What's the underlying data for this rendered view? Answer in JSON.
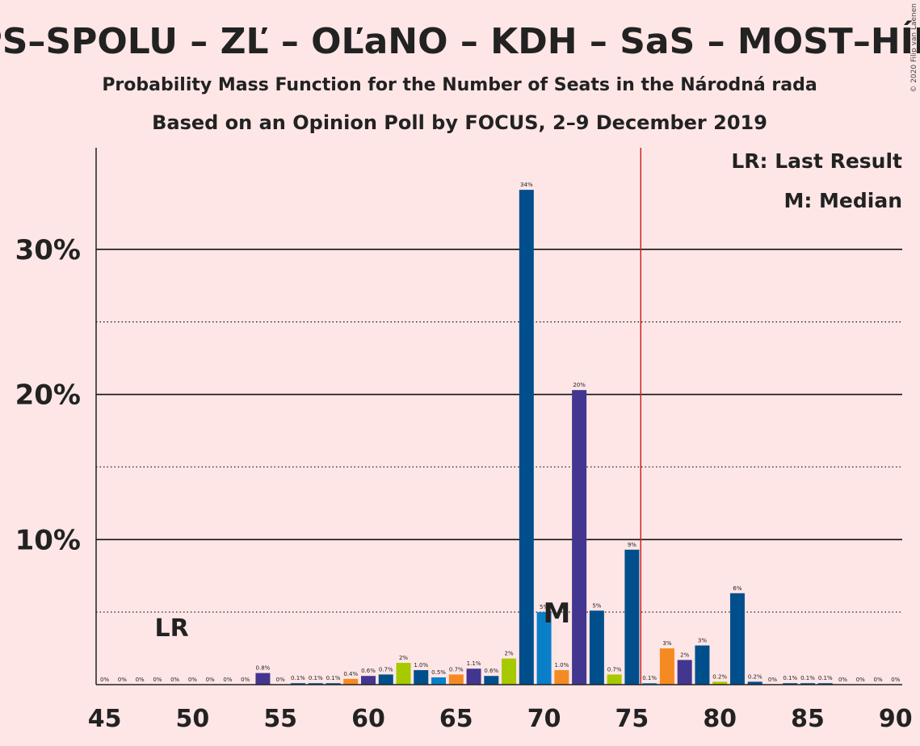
{
  "chart_data": {
    "type": "bar",
    "title": "PS–SPOLU – ZĽ – OĽaNO – KDH – SaS – MOST–HÍD",
    "subtitle1": "Probability Mass Function for the Number of Seats in the Národná rada",
    "subtitle2": "Based on an Opinion Poll by FOCUS, 2–9 December 2019",
    "copyright": "© 2020 Filip van Laenen",
    "legend": {
      "lr": "LR: Last Result",
      "median": "M: Median",
      "placement": "top-right"
    },
    "markers": {
      "lr_label": "LR",
      "lr_seat": 49,
      "median_label": "M",
      "median_seat": 71,
      "majority_line": 75.5
    },
    "xlim": [
      45,
      90
    ],
    "ylim": [
      0,
      37
    ],
    "x_ticks": [
      45,
      50,
      55,
      60,
      65,
      70,
      75,
      80,
      85,
      90
    ],
    "y_ticks_major": [
      10,
      20,
      30
    ],
    "y_ticks_minor": [
      5,
      15,
      25
    ],
    "y_tick_labels": [
      "10%",
      "20%",
      "30%"
    ],
    "colors": {
      "blue": "#004F8C",
      "lightblue": "#0A7FC9",
      "purple": "#433690",
      "orange": "#F68A22",
      "yellowgreen": "#A7C900",
      "majority": "#CC2222",
      "background": "#FFE6E6"
    },
    "bars": [
      {
        "x": 45,
        "value": 0,
        "label": "0%",
        "color": "#004F8C"
      },
      {
        "x": 46,
        "value": 0,
        "label": "0%",
        "color": "#004F8C"
      },
      {
        "x": 47,
        "value": 0,
        "label": "0%",
        "color": "#004F8C"
      },
      {
        "x": 48,
        "value": 0,
        "label": "0%",
        "color": "#004F8C"
      },
      {
        "x": 49,
        "value": 0,
        "label": "0%",
        "color": "#004F8C"
      },
      {
        "x": 50,
        "value": 0,
        "label": "0%",
        "color": "#004F8C"
      },
      {
        "x": 51,
        "value": 0,
        "label": "0%",
        "color": "#004F8C"
      },
      {
        "x": 52,
        "value": 0,
        "label": "0%",
        "color": "#004F8C"
      },
      {
        "x": 53,
        "value": 0,
        "label": "0%",
        "color": "#004F8C"
      },
      {
        "x": 54,
        "value": 0.8,
        "label": "0.8%",
        "color": "#433690"
      },
      {
        "x": 55,
        "value": 0,
        "label": "0%",
        "color": "#004F8C"
      },
      {
        "x": 56,
        "value": 0.1,
        "label": "0.1%",
        "color": "#004F8C"
      },
      {
        "x": 57,
        "value": 0.1,
        "label": "0.1%",
        "color": "#004F8C"
      },
      {
        "x": 58,
        "value": 0.1,
        "label": "0.1%",
        "color": "#004F8C"
      },
      {
        "x": 59,
        "value": 0.4,
        "label": "0.4%",
        "color": "#F68A22"
      },
      {
        "x": 60,
        "value": 0.6,
        "label": "0.6%",
        "color": "#433690"
      },
      {
        "x": 61,
        "value": 0.7,
        "label": "0.7%",
        "color": "#004F8C"
      },
      {
        "x": 62,
        "value": 1.5,
        "label": "2%",
        "color": "#A7C900"
      },
      {
        "x": 63,
        "value": 1.0,
        "label": "1.0%",
        "color": "#004F8C"
      },
      {
        "x": 64,
        "value": 0.5,
        "label": "0.5%",
        "color": "#0A7FC9"
      },
      {
        "x": 65,
        "value": 0.7,
        "label": "0.7%",
        "color": "#F68A22"
      },
      {
        "x": 66,
        "value": 1.1,
        "label": "1.1%",
        "color": "#433690"
      },
      {
        "x": 67,
        "value": 0.6,
        "label": "0.6%",
        "color": "#004F8C"
      },
      {
        "x": 68,
        "value": 1.8,
        "label": "2%",
        "color": "#A7C900"
      },
      {
        "x": 69,
        "value": 34.1,
        "label": "34%",
        "color": "#004F8C"
      },
      {
        "x": 70,
        "value": 5.0,
        "label": "5%",
        "color": "#0A7FC9"
      },
      {
        "x": 71,
        "value": 1.0,
        "label": "1.0%",
        "color": "#F68A22"
      },
      {
        "x": 72,
        "value": 20.3,
        "label": "20%",
        "color": "#433690"
      },
      {
        "x": 73,
        "value": 5.1,
        "label": "5%",
        "color": "#004F8C"
      },
      {
        "x": 74,
        "value": 0.7,
        "label": "0.7%",
        "color": "#A7C900"
      },
      {
        "x": 75,
        "value": 9.3,
        "label": "9%",
        "color": "#004F8C"
      },
      {
        "x": 76,
        "value": 0.1,
        "label": "0.1%",
        "color": "#0A7FC9"
      },
      {
        "x": 77,
        "value": 2.5,
        "label": "3%",
        "color": "#F68A22"
      },
      {
        "x": 78,
        "value": 1.7,
        "label": "2%",
        "color": "#433690"
      },
      {
        "x": 79,
        "value": 2.7,
        "label": "3%",
        "color": "#004F8C"
      },
      {
        "x": 80,
        "value": 0.2,
        "label": "0.2%",
        "color": "#A7C900"
      },
      {
        "x": 81,
        "value": 6.3,
        "label": "6%",
        "color": "#004F8C"
      },
      {
        "x": 82,
        "value": 0.2,
        "label": "0.2%",
        "color": "#004F8C"
      },
      {
        "x": 83,
        "value": 0,
        "label": "0%",
        "color": "#004F8C"
      },
      {
        "x": 84,
        "value": 0.1,
        "label": "0.1%",
        "color": "#004F8C"
      },
      {
        "x": 85,
        "value": 0.1,
        "label": "0.1%",
        "color": "#004F8C"
      },
      {
        "x": 86,
        "value": 0.1,
        "label": "0.1%",
        "color": "#004F8C"
      },
      {
        "x": 87,
        "value": 0,
        "label": "0%",
        "color": "#004F8C"
      },
      {
        "x": 88,
        "value": 0,
        "label": "0%",
        "color": "#004F8C"
      },
      {
        "x": 89,
        "value": 0,
        "label": "0%",
        "color": "#004F8C"
      },
      {
        "x": 90,
        "value": 0,
        "label": "0%",
        "color": "#004F8C"
      }
    ]
  }
}
